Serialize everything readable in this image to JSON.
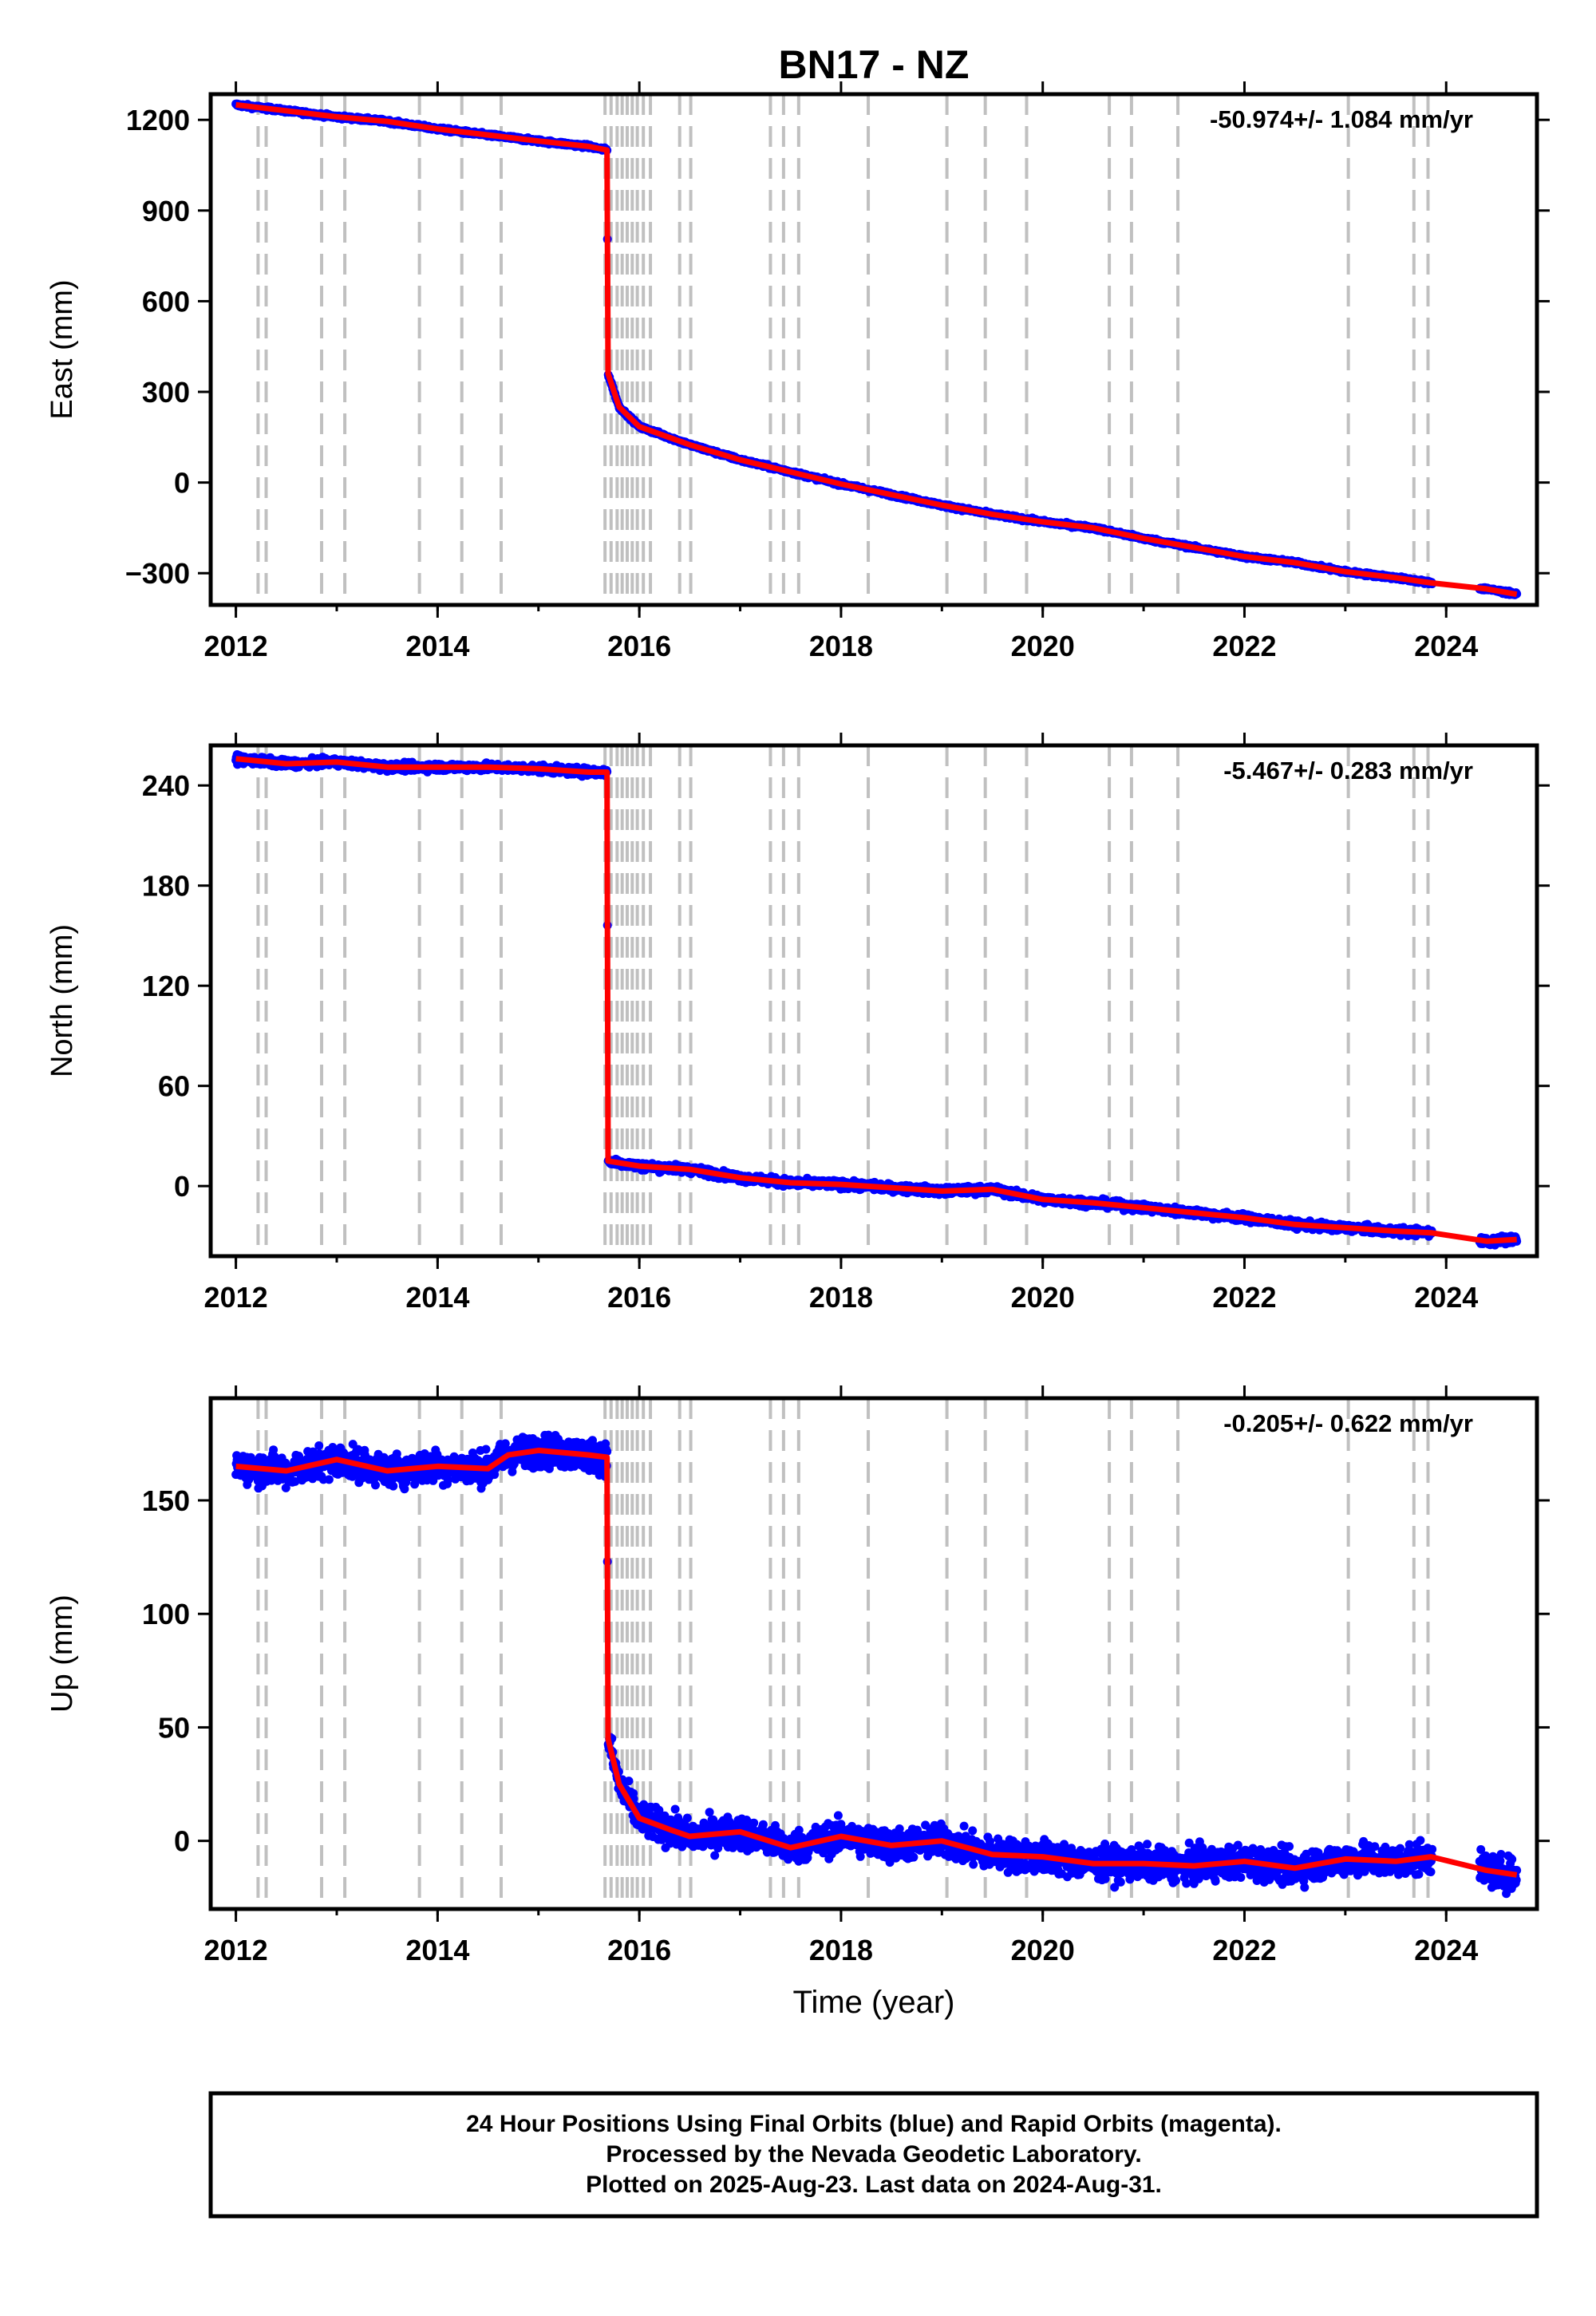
{
  "title": "BN17 - NZ",
  "colors": {
    "data": "#0000ff",
    "model": "#ff0000",
    "event": "#c0c0c0",
    "frame": "#000000"
  },
  "chart_data": [
    {
      "type": "scatter",
      "component": "east",
      "ylabel": "East (mm)",
      "xlabel": "",
      "rate_label": "-50.974+/- 1.084 mm/yr",
      "xlim": [
        2011.75,
        2024.9
      ],
      "ylim": [
        -405,
        1285
      ],
      "yticks": [
        -300,
        0,
        300,
        600,
        900,
        1200
      ],
      "ytick_labels": [
        "−300",
        "0",
        "300",
        "600",
        "900",
        "1200"
      ],
      "xticks": [
        2012,
        2014,
        2016,
        2018,
        2020,
        2022,
        2024
      ],
      "xtick_labels": [
        "2012",
        "2014",
        "2016",
        "2018",
        "2020",
        "2022",
        "2024"
      ],
      "noise": 4,
      "series": [
        {
          "x": [
            2012.0,
            2012.5,
            2013.0,
            2013.5,
            2014.0,
            2014.5,
            2015.0,
            2015.5,
            2015.68,
            2015.69,
            2015.8,
            2016.0,
            2016.5,
            2017.0,
            2017.5,
            2018.0,
            2018.5,
            2019.0,
            2019.5,
            2020.0,
            2020.5,
            2021.0,
            2021.5,
            2022.0,
            2022.5,
            2023.0,
            2023.5,
            2023.85,
            2024.4,
            2024.7
          ],
          "y": [
            1250,
            1230,
            1210,
            1195,
            1170,
            1150,
            1130,
            1112,
            1100,
            360,
            250,
            185,
            125,
            75,
            35,
            -5,
            -40,
            -75,
            -105,
            -130,
            -150,
            -185,
            -215,
            -245,
            -265,
            -295,
            -315,
            -332,
            -352,
            -370
          ]
        }
      ]
    },
    {
      "type": "scatter",
      "component": "north",
      "ylabel": "North (mm)",
      "xlabel": "",
      "rate_label": "-5.467+/- 0.283 mm/yr",
      "xlim": [
        2011.75,
        2024.9
      ],
      "ylim": [
        -42,
        264
      ],
      "yticks": [
        0,
        60,
        120,
        180,
        240
      ],
      "ytick_labels": [
        "0",
        "60",
        "120",
        "180",
        "240"
      ],
      "xticks": [
        2012,
        2014,
        2016,
        2018,
        2020,
        2022,
        2024
      ],
      "xtick_labels": [
        "2012",
        "2014",
        "2016",
        "2018",
        "2020",
        "2022",
        "2024"
      ],
      "noise": 1.6,
      "series": [
        {
          "x": [
            2012.0,
            2012.5,
            2013.0,
            2013.5,
            2014.0,
            2014.5,
            2015.0,
            2015.5,
            2015.68,
            2015.69,
            2016.0,
            2016.5,
            2017.0,
            2017.5,
            2018.0,
            2018.5,
            2019.0,
            2019.5,
            2020.0,
            2020.5,
            2021.0,
            2021.5,
            2022.0,
            2022.5,
            2023.0,
            2023.5,
            2023.85,
            2024.4,
            2024.7
          ],
          "y": [
            256,
            253,
            254,
            251,
            251,
            251,
            250,
            248,
            248,
            15,
            12,
            10,
            5,
            2,
            1,
            -1,
            -3,
            -2,
            -8,
            -10,
            -13,
            -16,
            -19,
            -23,
            -25,
            -27,
            -28,
            -33,
            -32
          ]
        }
      ]
    },
    {
      "type": "scatter",
      "component": "up",
      "ylabel": "Up (mm)",
      "xlabel": "Time (year)",
      "rate_label": "-0.205+/- 0.622 mm/yr",
      "xlim": [
        2011.75,
        2024.9
      ],
      "ylim": [
        -30,
        195
      ],
      "yticks": [
        0,
        50,
        100,
        150
      ],
      "ytick_labels": [
        "0",
        "50",
        "100",
        "150"
      ],
      "xticks": [
        2012,
        2014,
        2016,
        2018,
        2020,
        2022,
        2024
      ],
      "xtick_labels": [
        "2012",
        "2014",
        "2016",
        "2018",
        "2020",
        "2022",
        "2024"
      ],
      "noise": 5,
      "series": [
        {
          "x": [
            2012.0,
            2012.5,
            2013.0,
            2013.5,
            2014.0,
            2014.5,
            2014.7,
            2015.0,
            2015.5,
            2015.68,
            2015.69,
            2015.8,
            2016.0,
            2016.3,
            2016.5,
            2017.0,
            2017.5,
            2018.0,
            2018.5,
            2019.0,
            2019.5,
            2020.0,
            2020.5,
            2021.0,
            2021.5,
            2022.0,
            2022.5,
            2023.0,
            2023.5,
            2023.85,
            2024.4,
            2024.7
          ],
          "y": [
            165,
            163,
            168,
            163,
            165,
            164,
            170,
            172,
            170,
            169,
            45,
            25,
            10,
            5,
            2,
            4,
            -3,
            2,
            -2,
            0,
            -6,
            -7,
            -10,
            -10,
            -11,
            -9,
            -12,
            -8,
            -9,
            -7,
            -13,
            -15
          ]
        }
      ]
    }
  ],
  "event_lines": [
    2012.22,
    2012.3,
    2012.85,
    2013.08,
    2013.82,
    2014.24,
    2014.63,
    2015.66,
    2015.72,
    2015.78,
    2015.83,
    2015.88,
    2015.93,
    2015.98,
    2016.04,
    2016.11,
    2016.4,
    2016.51,
    2017.3,
    2017.43,
    2017.58,
    2018.27,
    2019.05,
    2019.43,
    2019.84,
    2020.66,
    2020.88,
    2021.34,
    2023.03,
    2023.68,
    2023.82
  ],
  "footer": {
    "line1": "24 Hour Positions Using Final Orbits (blue) and Rapid Orbits (magenta).",
    "line2": "Processed by the Nevada Geodetic Laboratory.",
    "line3": "Plotted on 2025-Aug-23. Last data on 2024-Aug-31."
  }
}
